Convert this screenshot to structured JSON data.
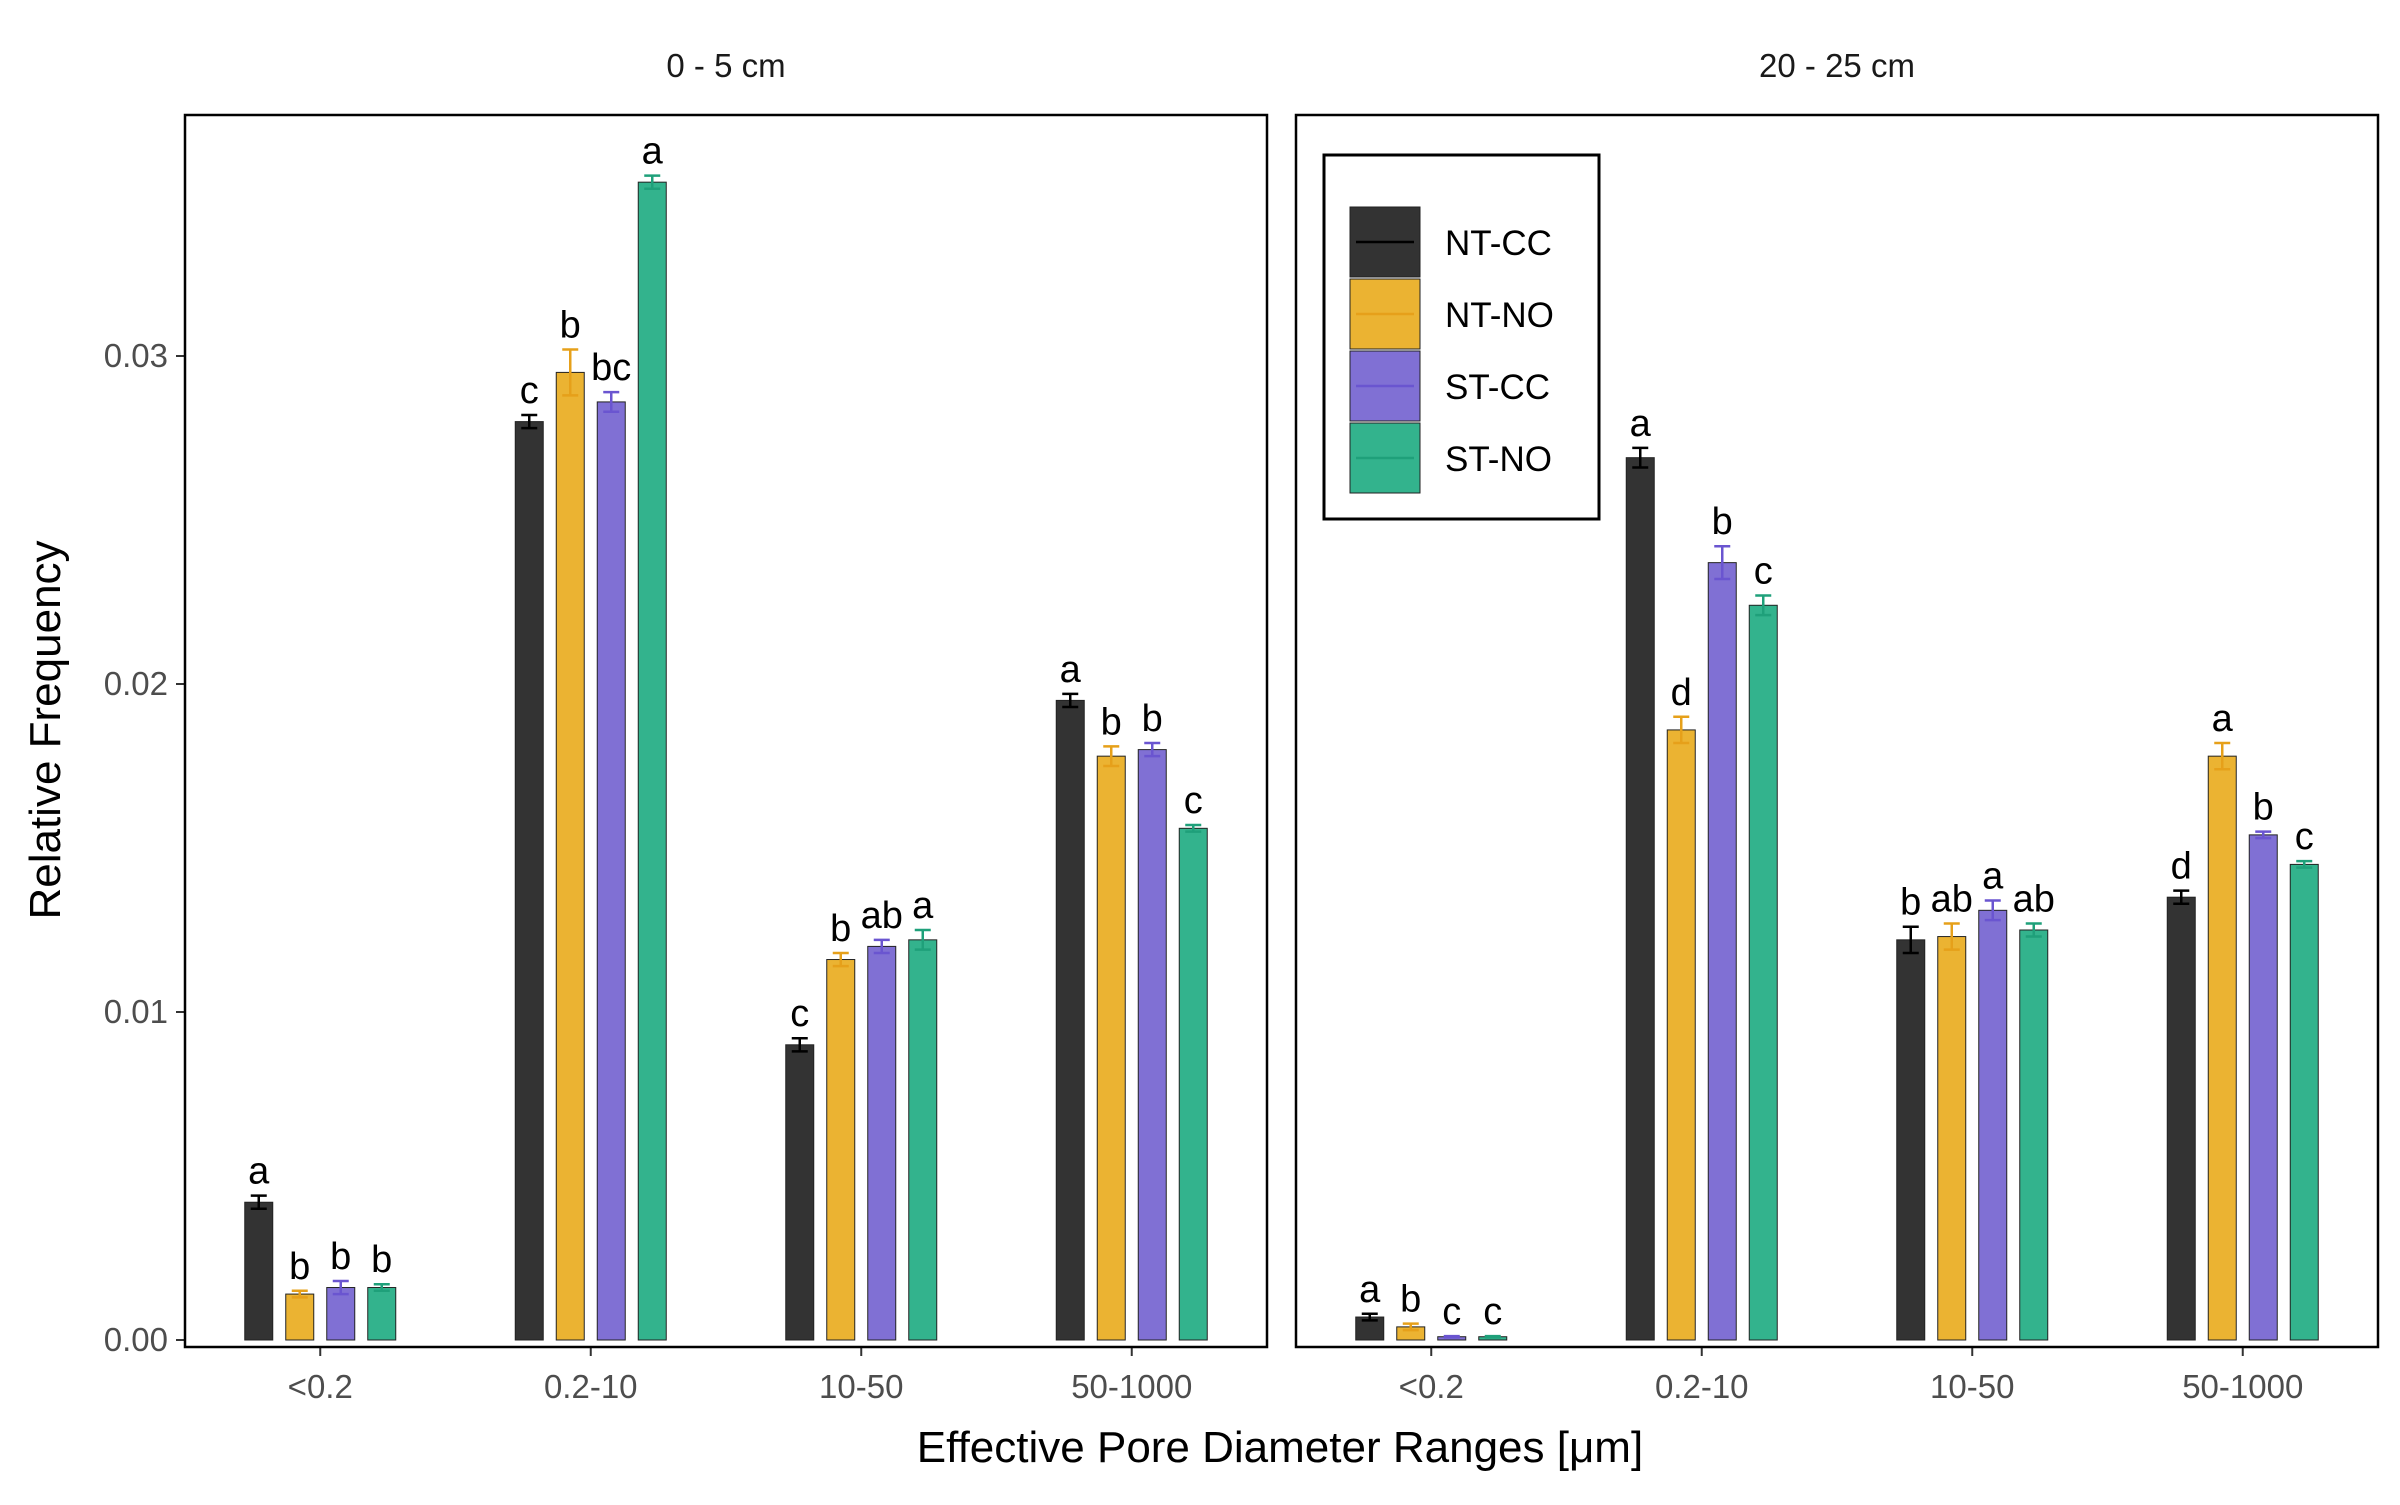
{
  "chart_data": {
    "type": "bar",
    "title": "",
    "xlabel": "Effective Pore Diameter Ranges [μm]",
    "ylabel": "Relative Frequency",
    "ylim": [
      0,
      0.0375
    ],
    "y_ticks": [
      "0.00",
      "0.01",
      "0.02",
      "0.03"
    ],
    "y_tick_values": [
      0,
      0.01,
      0.02,
      0.03
    ],
    "categories": [
      "<0.2",
      "0.2-10",
      "10-50",
      "50-1000"
    ],
    "legend": {
      "placement": "top-left of right panel",
      "entries": [
        "NT-CC",
        "NT-NO",
        "ST-CC",
        "ST-NO"
      ]
    },
    "colors": {
      "NT-CC": "#333333",
      "NT-NO": "#ebb332",
      "ST-CC": "#8070d4",
      "ST-NO": "#33b38d"
    },
    "error_colors": {
      "NT-CC": "#000000",
      "NT-NO": "#e6a01a",
      "ST-CC": "#6a55d0",
      "ST-NO": "#1fa07a"
    },
    "grid": false,
    "panels": [
      {
        "label": "0 - 5 cm",
        "series": [
          {
            "name": "NT-CC",
            "values": [
              0.0042,
              0.028,
              0.009,
              0.0195
            ],
            "errors": [
              0.0002,
              0.0002,
              0.0002,
              0.0002
            ],
            "letters": [
              "a",
              "c",
              "c",
              "a"
            ]
          },
          {
            "name": "NT-NO",
            "values": [
              0.0014,
              0.0295,
              0.0116,
              0.0178
            ],
            "errors": [
              0.0001,
              0.0007,
              0.0002,
              0.0003
            ],
            "letters": [
              "b",
              "b",
              "b",
              "b"
            ]
          },
          {
            "name": "ST-CC",
            "values": [
              0.0016,
              0.0286,
              0.012,
              0.018
            ],
            "errors": [
              0.0002,
              0.0003,
              0.0002,
              0.0002
            ],
            "letters": [
              "b",
              "bc",
              "ab",
              "b"
            ]
          },
          {
            "name": "ST-NO",
            "values": [
              0.0016,
              0.0353,
              0.0122,
              0.0156
            ],
            "errors": [
              0.0001,
              0.0002,
              0.0003,
              0.0001
            ],
            "letters": [
              "b",
              "a",
              "a",
              "c"
            ]
          }
        ]
      },
      {
        "label": "20 - 25 cm",
        "series": [
          {
            "name": "NT-CC",
            "values": [
              0.0007,
              0.0269,
              0.0122,
              0.0135
            ],
            "errors": [
              0.0001,
              0.0003,
              0.0004,
              0.0002
            ],
            "letters": [
              "a",
              "a",
              "b",
              "d"
            ]
          },
          {
            "name": "NT-NO",
            "values": [
              0.0004,
              0.0186,
              0.0123,
              0.0178
            ],
            "errors": [
              0.0001,
              0.0004,
              0.0004,
              0.0004
            ],
            "letters": [
              "b",
              "d",
              "ab",
              "a"
            ]
          },
          {
            "name": "ST-CC",
            "values": [
              0.0001,
              0.0237,
              0.0131,
              0.0154
            ],
            "errors": [
              2e-05,
              0.0005,
              0.0003,
              0.0001
            ],
            "letters": [
              "c",
              "b",
              "a",
              "b"
            ]
          },
          {
            "name": "ST-NO",
            "values": [
              0.0001,
              0.0224,
              0.0125,
              0.0145
            ],
            "errors": [
              2e-05,
              0.0003,
              0.0002,
              0.0001
            ],
            "letters": [
              "c",
              "c",
              "ab",
              "c"
            ]
          }
        ]
      }
    ]
  }
}
